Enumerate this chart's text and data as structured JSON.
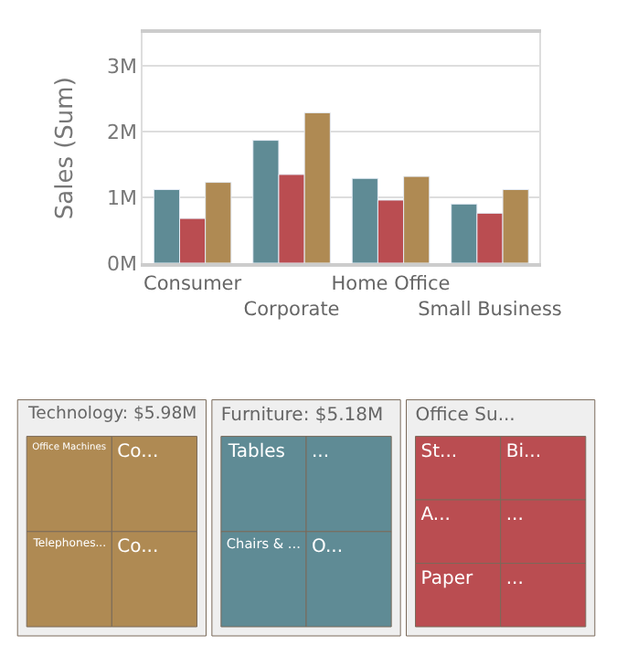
{
  "chart_data": [
    {
      "type": "bar",
      "ylabel": "Sales (Sum)",
      "categories": [
        "Consumer",
        "Corporate",
        "Home Office",
        "Small Business"
      ],
      "series": [
        {
          "color": "#5f8b95",
          "values": [
            1.12,
            1.87,
            1.29,
            0.9
          ]
        },
        {
          "color": "#ba4d51",
          "values": [
            0.68,
            1.35,
            0.96,
            0.76
          ]
        },
        {
          "color": "#af8a53",
          "values": [
            1.23,
            2.29,
            1.32,
            1.12
          ]
        }
      ],
      "ylim": [
        0,
        3.5
      ],
      "yticks": [
        {
          "value": 0,
          "label": "0M"
        },
        {
          "value": 1,
          "label": "1M"
        },
        {
          "value": 2,
          "label": "2M"
        },
        {
          "value": 3,
          "label": "3M"
        }
      ],
      "grid": "y"
    },
    {
      "type": "other",
      "title": "Technology: $5.98M",
      "categories": [
        "Office Machines",
        "Co...",
        "Telephones...",
        "Co..."
      ],
      "color": "#af8a53"
    },
    {
      "type": "other",
      "title": "Furniture: $5.18M",
      "categories": [
        "Tables",
        "...",
        "Chairs & ...",
        "O..."
      ],
      "color": "#5f8b95"
    },
    {
      "type": "other",
      "title": "Office Su...",
      "categories": [
        "St...",
        "Bi...",
        "A...",
        "Paper",
        "...",
        "..."
      ],
      "color": "#ba4d51"
    }
  ]
}
